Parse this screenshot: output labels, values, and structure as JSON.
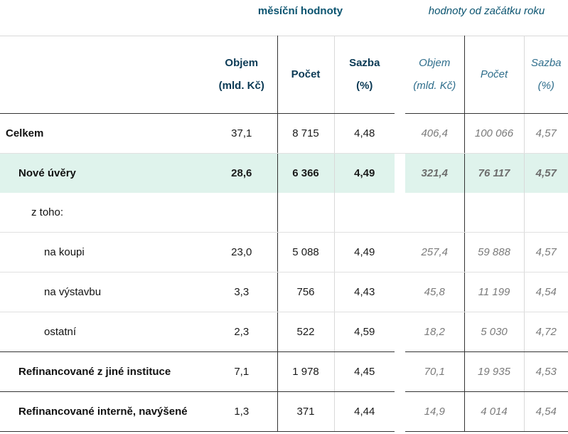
{
  "group_headers": {
    "monthly": "měsíční hodnoty",
    "ytd": "hodnoty od začátku roku"
  },
  "columns": {
    "monthly": {
      "volume": "Objem\n(mld. Kč)",
      "count": "Počet",
      "rate": "Sazba\n(%)"
    },
    "ytd": {
      "volume": "Objem\n(mld. Kč)",
      "count": "Počet",
      "rate": "Sazba\n(%)"
    }
  },
  "rows": [
    {
      "label": "Celkem",
      "m_volume": "37,1",
      "m_count": "8 715",
      "m_rate": "4,48",
      "y_volume": "406,4",
      "y_count": "100 066",
      "y_rate": "4,57"
    },
    {
      "label": "Nové úvěry",
      "m_volume": "28,6",
      "m_count": "6 366",
      "m_rate": "4,49",
      "y_volume": "321,4",
      "y_count": "76 117",
      "y_rate": "4,57"
    },
    {
      "label": "z toho:",
      "m_volume": "",
      "m_count": "",
      "m_rate": "",
      "y_volume": "",
      "y_count": "",
      "y_rate": ""
    },
    {
      "label": "na koupi",
      "m_volume": "23,0",
      "m_count": "5 088",
      "m_rate": "4,49",
      "y_volume": "257,4",
      "y_count": "59 888",
      "y_rate": "4,57"
    },
    {
      "label": "na výstavbu",
      "m_volume": "3,3",
      "m_count": "756",
      "m_rate": "4,43",
      "y_volume": "45,8",
      "y_count": "11 199",
      "y_rate": "4,54"
    },
    {
      "label": "ostatní",
      "m_volume": "2,3",
      "m_count": "522",
      "m_rate": "4,59",
      "y_volume": "18,2",
      "y_count": "5 030",
      "y_rate": "4,72"
    },
    {
      "label": "Refinancované z jiné instituce",
      "m_volume": "7,1",
      "m_count": "1 978",
      "m_rate": "4,45",
      "y_volume": "70,1",
      "y_count": "19 935",
      "y_rate": "4,53"
    },
    {
      "label": "Refinancované interně, navýšené",
      "m_volume": "1,3",
      "m_count": "371",
      "m_rate": "4,44",
      "y_volume": "14,9",
      "y_count": "4 014",
      "y_rate": "4,54"
    }
  ],
  "colors": {
    "header_text": "#0b3a55",
    "highlight_row": "#dff3ec",
    "ytd_text": "#7a7a7a"
  }
}
